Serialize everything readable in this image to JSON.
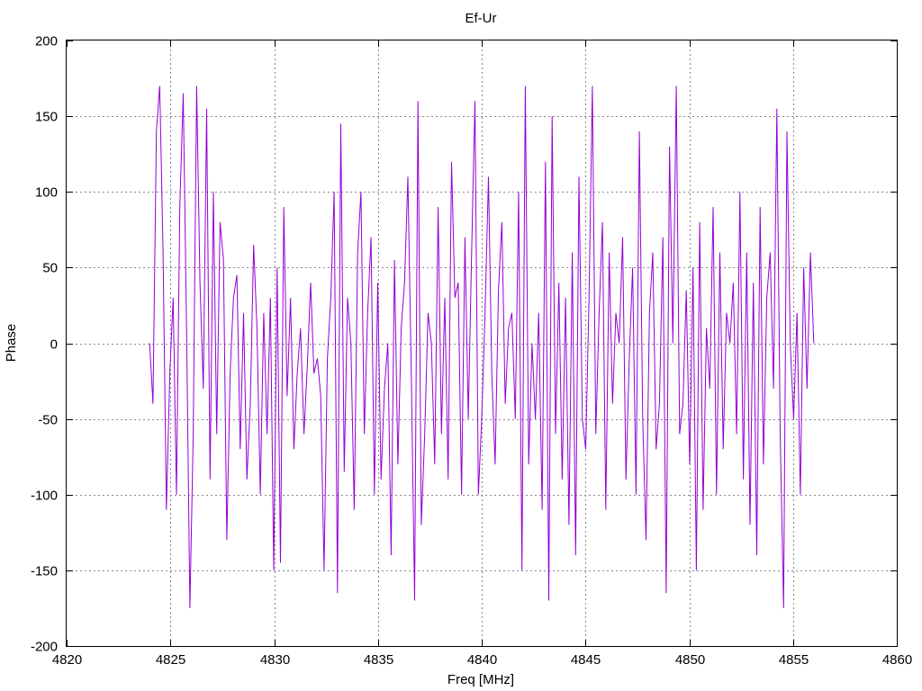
{
  "chart_data": {
    "type": "line",
    "title": "Ef-Ur",
    "xlabel": "Freq [MHz]",
    "ylabel": "Phase",
    "xlim": [
      4820,
      4860
    ],
    "ylim": [
      -200,
      200
    ],
    "xticks": [
      4820,
      4825,
      4830,
      4835,
      4840,
      4845,
      4850,
      4855,
      4860
    ],
    "yticks": [
      -200,
      -150,
      -100,
      -50,
      0,
      50,
      100,
      150,
      200
    ],
    "grid": true,
    "series_color": "#9400d3",
    "series": [
      {
        "x_start": 4824,
        "x_end": 4856,
        "values": [
          0,
          -40,
          140,
          170,
          60,
          -110,
          -20,
          30,
          -100,
          90,
          165,
          10,
          -175,
          -60,
          170,
          40,
          -30,
          155,
          -90,
          100,
          -60,
          80,
          55,
          -130,
          -20,
          30,
          45,
          -70,
          20,
          -90,
          -40,
          65,
          10,
          -100,
          20,
          -60,
          30,
          -150,
          50,
          -145,
          90,
          -35,
          30,
          -70,
          -20,
          10,
          -60,
          -15,
          40,
          -20,
          -10,
          -35,
          -150,
          -10,
          30,
          100,
          -165,
          145,
          -85,
          30,
          0,
          -110,
          60,
          100,
          -60,
          20,
          70,
          -100,
          40,
          -90,
          -30,
          0,
          -140,
          55,
          -80,
          10,
          40,
          110,
          -20,
          -170,
          160,
          -120,
          -60,
          20,
          0,
          -80,
          90,
          -60,
          30,
          -90,
          120,
          30,
          40,
          -100,
          70,
          -50,
          60,
          160,
          -100,
          -50,
          20,
          110,
          -20,
          -80,
          35,
          80,
          -40,
          10,
          20,
          -50,
          100,
          -150,
          170,
          -80,
          0,
          -50,
          20,
          -110,
          120,
          -170,
          150,
          -60,
          40,
          -90,
          30,
          -120,
          60,
          -140,
          110,
          -50,
          -70,
          30,
          170,
          -60,
          20,
          80,
          -110,
          60,
          -40,
          20,
          0,
          70,
          -90,
          -10,
          50,
          -100,
          140,
          -50,
          -130,
          20,
          60,
          -70,
          -40,
          70,
          -165,
          130,
          0,
          170,
          -60,
          -40,
          35,
          -80,
          50,
          -150,
          80,
          -110,
          10,
          -30,
          90,
          -100,
          60,
          -70,
          20,
          0,
          40,
          -60,
          100,
          -90,
          60,
          -120,
          40,
          -140,
          90,
          -80,
          30,
          60,
          -30,
          155,
          -60,
          -175,
          140,
          0,
          -50,
          20,
          -100,
          50,
          -30,
          60,
          0
        ]
      }
    ]
  }
}
